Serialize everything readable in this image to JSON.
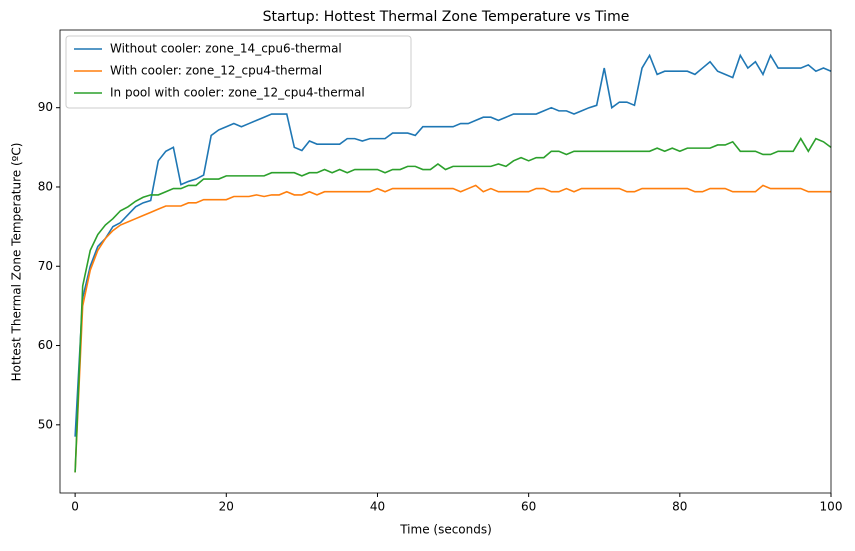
{
  "chart_data": {
    "type": "line",
    "title": "Startup: Hottest Thermal Zone Temperature vs Time",
    "x_label": "Time (seconds)",
    "y_label": "Hottest Thermal Zone Temperature (ºC)",
    "x": [
      0,
      1,
      2,
      3,
      4,
      5,
      6,
      7,
      8,
      9,
      10,
      11,
      12,
      13,
      14,
      15,
      16,
      17,
      18,
      19,
      20,
      21,
      22,
      23,
      24,
      25,
      26,
      27,
      28,
      29,
      30,
      31,
      32,
      33,
      34,
      35,
      36,
      37,
      38,
      39,
      40,
      41,
      42,
      43,
      44,
      45,
      46,
      47,
      48,
      49,
      50,
      51,
      52,
      53,
      54,
      55,
      56,
      57,
      58,
      59,
      60,
      61,
      62,
      63,
      64,
      65,
      66,
      67,
      68,
      69,
      70,
      71,
      72,
      73,
      74,
      75,
      76,
      77,
      78,
      79,
      80,
      81,
      82,
      83,
      84,
      85,
      86,
      87,
      88,
      89,
      90,
      91,
      92,
      93,
      94,
      95,
      96,
      97,
      98,
      99,
      100
    ],
    "series": [
      {
        "name": "Without cooler: zone_14_cpu6-thermal",
        "color": "#1f77b4",
        "values": [
          48.5,
          66,
          70,
          72.5,
          73.5,
          75,
          75.5,
          76.5,
          77.5,
          78,
          78.3,
          83.3,
          84.5,
          85,
          80.3,
          80.7,
          81,
          81.5,
          86.5,
          87.2,
          87.6,
          88,
          87.6,
          88,
          88.4,
          88.8,
          89.2,
          89.2,
          89.2,
          85,
          84.6,
          85.8,
          85.4,
          85.4,
          85.4,
          85.4,
          86.1,
          86.1,
          85.8,
          86.1,
          86.1,
          86.1,
          86.8,
          86.8,
          86.8,
          86.5,
          87.6,
          87.6,
          87.6,
          87.6,
          87.6,
          88,
          88,
          88.4,
          88.8,
          88.8,
          88.4,
          88.8,
          89.2,
          89.2,
          89.2,
          89.2,
          89.6,
          90,
          89.6,
          89.6,
          89.2,
          89.6,
          90,
          90.3,
          95,
          90,
          90.7,
          90.7,
          90.3,
          95,
          96.6,
          94.2,
          94.6,
          94.6,
          94.6,
          94.6,
          94.2,
          95,
          95.8,
          94.6,
          94.2,
          93.8,
          96.6,
          95,
          95.8,
          94.2,
          96.6,
          95,
          95,
          95,
          95,
          95.4,
          94.6,
          95,
          94.6
        ]
      },
      {
        "name": "With cooler: zone_12_cpu4-thermal",
        "color": "#ff7f0e",
        "values": [
          44,
          65,
          69.5,
          72,
          73.5,
          74.5,
          75.2,
          75.6,
          76,
          76.4,
          76.8,
          77.2,
          77.6,
          77.6,
          77.6,
          78,
          78,
          78.4,
          78.4,
          78.4,
          78.4,
          78.8,
          78.8,
          78.8,
          79,
          78.8,
          79,
          79,
          79.4,
          79,
          79,
          79.4,
          79,
          79.4,
          79.4,
          79.4,
          79.4,
          79.4,
          79.4,
          79.4,
          79.8,
          79.4,
          79.8,
          79.8,
          79.8,
          79.8,
          79.8,
          79.8,
          79.8,
          79.8,
          79.8,
          79.4,
          79.8,
          80.2,
          79.4,
          79.8,
          79.4,
          79.4,
          79.4,
          79.4,
          79.4,
          79.8,
          79.8,
          79.4,
          79.4,
          79.8,
          79.4,
          79.8,
          79.8,
          79.8,
          79.8,
          79.8,
          79.8,
          79.4,
          79.4,
          79.8,
          79.8,
          79.8,
          79.8,
          79.8,
          79.8,
          79.8,
          79.4,
          79.4,
          79.8,
          79.8,
          79.8,
          79.4,
          79.4,
          79.4,
          79.4,
          80.2,
          79.8,
          79.8,
          79.8,
          79.8,
          79.8,
          79.4,
          79.4,
          79.4,
          79.4
        ]
      },
      {
        "name": "In pool with cooler: zone_12_cpu4-thermal",
        "color": "#2ca02c",
        "values": [
          44,
          67.5,
          72,
          74,
          75.2,
          76,
          77,
          77.5,
          78.2,
          78.7,
          79,
          79,
          79.4,
          79.8,
          79.8,
          80.2,
          80.2,
          81,
          81,
          81,
          81.4,
          81.4,
          81.4,
          81.4,
          81.4,
          81.4,
          81.8,
          81.8,
          81.8,
          81.8,
          81.4,
          81.8,
          81.8,
          82.2,
          81.8,
          82.2,
          81.8,
          82.2,
          82.2,
          82.2,
          82.2,
          81.8,
          82.2,
          82.2,
          82.6,
          82.6,
          82.2,
          82.2,
          82.9,
          82.2,
          82.6,
          82.6,
          82.6,
          82.6,
          82.6,
          82.6,
          82.9,
          82.6,
          83.3,
          83.7,
          83.3,
          83.7,
          83.7,
          84.5,
          84.5,
          84.1,
          84.5,
          84.5,
          84.5,
          84.5,
          84.5,
          84.5,
          84.5,
          84.5,
          84.5,
          84.5,
          84.5,
          84.9,
          84.5,
          84.9,
          84.5,
          84.9,
          84.9,
          84.9,
          84.9,
          85.3,
          85.3,
          85.7,
          84.5,
          84.5,
          84.5,
          84.1,
          84.1,
          84.5,
          84.5,
          84.5,
          86.1,
          84.5,
          86.1,
          85.7,
          85
        ]
      }
    ],
    "xlim": [
      -2,
      100
    ],
    "ylim": [
      41.4,
      99.8
    ],
    "xticks": [
      0,
      20,
      40,
      60,
      80,
      100
    ],
    "yticks": [
      50,
      60,
      70,
      80,
      90
    ],
    "grid": false,
    "legend": "upper left"
  }
}
